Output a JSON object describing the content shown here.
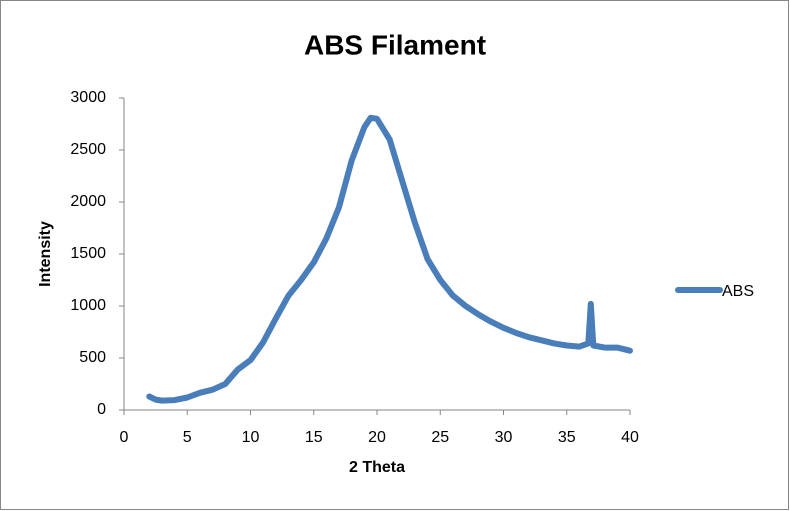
{
  "chart_data": {
    "type": "line",
    "title": "ABS Filament",
    "x_label": "2 Theta",
    "y_label": "Intensity",
    "x": [
      2,
      2.5,
      3,
      4,
      5,
      6,
      7,
      8,
      9,
      10,
      11,
      12,
      13,
      14,
      15,
      16,
      17,
      18,
      19,
      19.5,
      20,
      21,
      22,
      23,
      24,
      25,
      26,
      27,
      28,
      29,
      30,
      31,
      32,
      33,
      34,
      35,
      36,
      36.7,
      36.9,
      37.1,
      38,
      39,
      40
    ],
    "series": [
      {
        "name": "ABS",
        "color": "#4a7ebb",
        "values": [
          130,
          100,
          90,
          95,
          120,
          165,
          195,
          250,
          390,
          480,
          650,
          880,
          1100,
          1250,
          1420,
          1650,
          1950,
          2400,
          2720,
          2810,
          2800,
          2600,
          2200,
          1800,
          1450,
          1250,
          1100,
          1000,
          920,
          850,
          790,
          740,
          700,
          670,
          640,
          620,
          610,
          640,
          1020,
          620,
          600,
          600,
          570
        ]
      }
    ],
    "xlim": [
      0,
      40
    ],
    "xticks": [
      0,
      5,
      10,
      15,
      20,
      25,
      30,
      35,
      40
    ],
    "ylim": [
      0,
      3000
    ],
    "yticks": [
      0,
      500,
      1000,
      1500,
      2000,
      2500,
      3000
    ],
    "legend": "right"
  }
}
